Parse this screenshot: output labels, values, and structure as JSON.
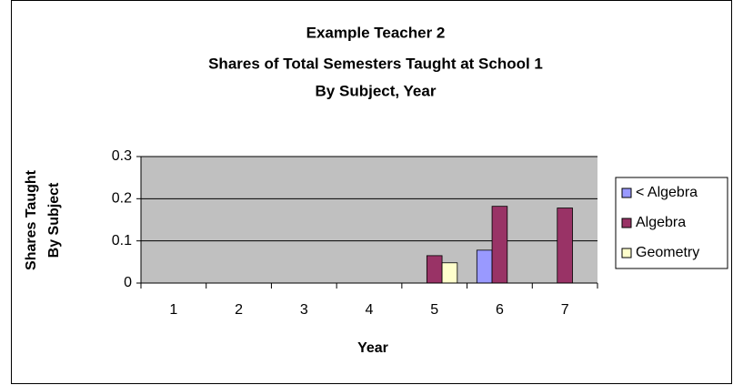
{
  "chart_data": {
    "type": "bar",
    "title": [
      "Example Teacher 2",
      "Shares of Total Semesters Taught at School 1",
      "By Subject, Year"
    ],
    "x_label": "Year",
    "y_label": [
      "Shares Taught",
      "By Subject"
    ],
    "categories": [
      "1",
      "2",
      "3",
      "4",
      "5",
      "6",
      "7"
    ],
    "series": [
      {
        "name": "< Algebra",
        "color": "#9999ff",
        "values": [
          null,
          null,
          null,
          null,
          null,
          0.078,
          null
        ]
      },
      {
        "name": "Algebra",
        "color": "#993366",
        "values": [
          null,
          null,
          null,
          null,
          0.065,
          0.182,
          0.178
        ]
      },
      {
        "name": "Geometry",
        "color": "#ffffcc",
        "values": [
          null,
          null,
          null,
          null,
          0.048,
          null,
          null
        ]
      }
    ],
    "ylim": [
      0,
      0.3
    ],
    "yticks": [
      0,
      0.1,
      0.2,
      0.3
    ],
    "grid": true,
    "legend": "right"
  }
}
